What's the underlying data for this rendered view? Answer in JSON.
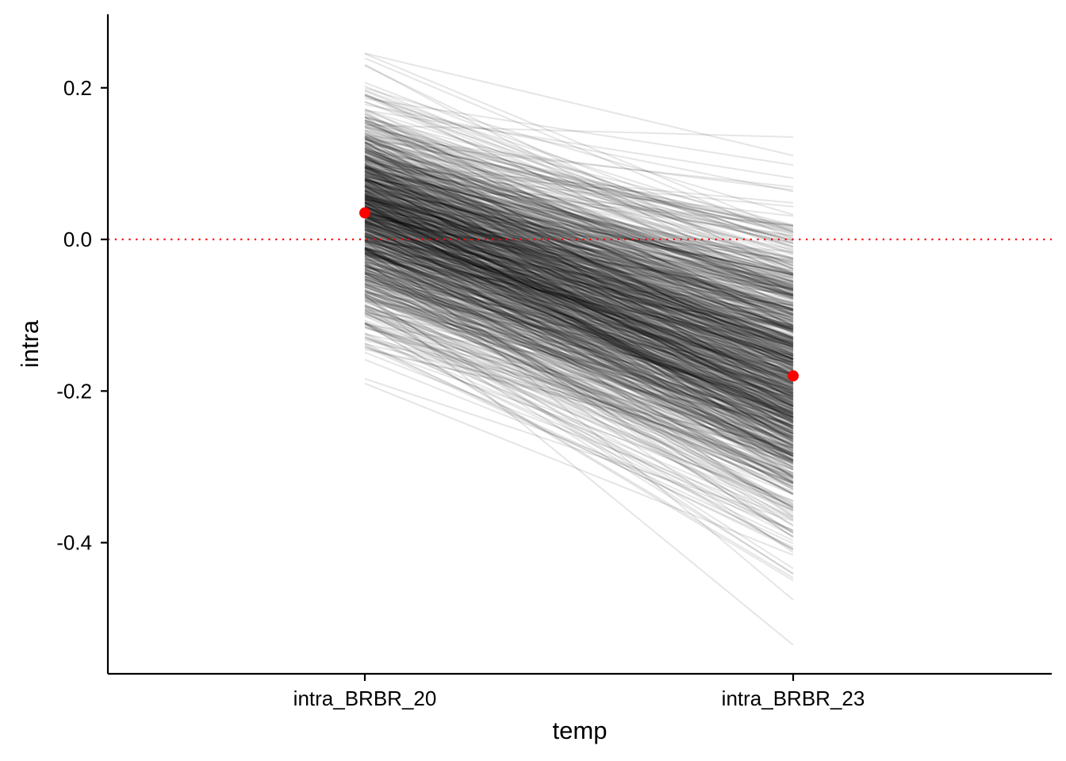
{
  "chart_data": {
    "type": "line",
    "title": "",
    "xlabel": "temp",
    "ylabel": "intra",
    "categories": [
      "intra_BRBR_20",
      "intra_BRBR_23"
    ],
    "yticks": [
      0.2,
      0.0,
      -0.2,
      -0.4
    ],
    "ytick_labels": [
      "0.2",
      "0.0",
      "-0.2",
      "-0.4"
    ],
    "ylim": [
      -0.573,
      0.297
    ],
    "grid": false,
    "legend": "none",
    "reference_line": {
      "y": 0.0,
      "style": "dotted",
      "color": "#ff0000"
    },
    "mean_points": {
      "values": [
        0.035,
        -0.18
      ],
      "color": "#ff0000"
    },
    "draw_lines": {
      "count": 1000,
      "color": "#000000",
      "opacity": 0.1,
      "start_mean": 0.035,
      "start_sd": 0.07,
      "start_range": [
        -0.19,
        0.26
      ],
      "end_mean": -0.18,
      "end_sd": 0.095,
      "end_range": [
        -0.535,
        0.135
      ],
      "correlation": 0.7
    }
  }
}
